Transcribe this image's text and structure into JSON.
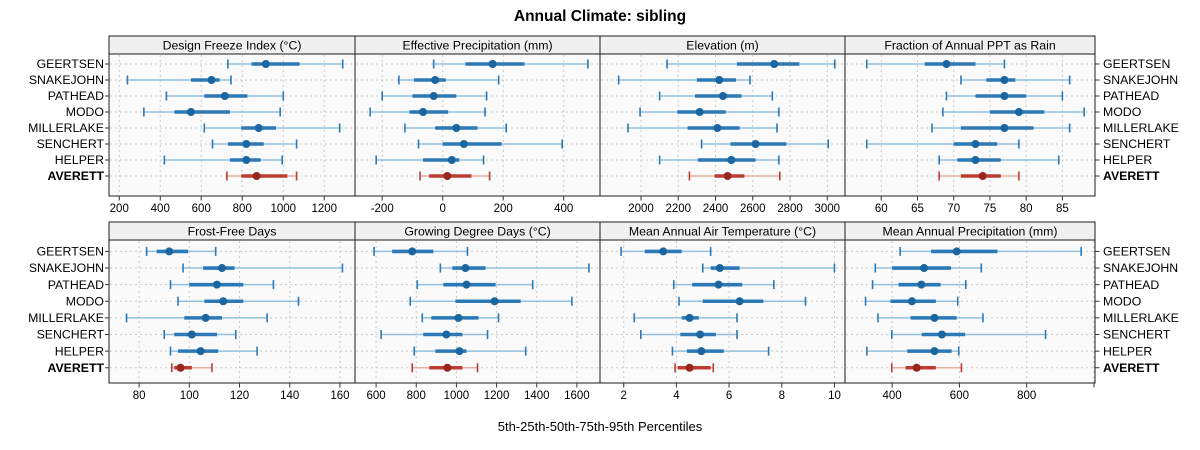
{
  "title": "Annual Climate: sibling",
  "xlabel": "5th-25th-50th-75th-95th Percentiles",
  "colors": {
    "blue_light": "#93c0de",
    "blue_mid": "#2b79b7",
    "blue_dot": "#1b669f",
    "red_light": "#eaaca4",
    "red_mid": "#bd3d31",
    "red_dot": "#9a251c",
    "header_bg": "#f0f0f0",
    "panel_bg": "#fafafa",
    "grid": "#c9c9c9",
    "border": "#1c1c1c",
    "tick": "#333333",
    "text": "#000000"
  },
  "chart_data": {
    "type": "dotplot-percentiles",
    "percentile_labels": [
      "5th",
      "25th",
      "50th",
      "75th",
      "95th"
    ],
    "stations": [
      "GEERTSEN",
      "SNAKEJOHN",
      "PATHEAD",
      "MODO",
      "MILLERLAKE",
      "SENCHERT",
      "HELPER",
      "AVERETT"
    ],
    "highlight_station": "AVERETT",
    "legend_position": "none",
    "grid": "dashed",
    "panels": [
      {
        "header": "Design Freeze Index (°C)",
        "row": 0,
        "col": 0,
        "xlim": [
          150,
          1350
        ],
        "ticks": [
          200,
          400,
          600,
          800,
          1000,
          1200
        ],
        "tick_labels": [
          "200",
          "400",
          "600",
          "800",
          "1000",
          "1200"
        ],
        "series": [
          [
            730,
            845,
            915,
            1080,
            1290
          ],
          [
            240,
            550,
            650,
            690,
            745
          ],
          [
            430,
            615,
            715,
            825,
            1000
          ],
          [
            320,
            470,
            550,
            740,
            985
          ],
          [
            615,
            795,
            880,
            965,
            1275
          ],
          [
            655,
            730,
            820,
            905,
            1065
          ],
          [
            420,
            740,
            820,
            890,
            995
          ],
          [
            725,
            795,
            870,
            1020,
            1065
          ]
        ]
      },
      {
        "header": "Effective Precipitation (mm)",
        "row": 0,
        "col": 1,
        "xlim": [
          -290,
          520
        ],
        "ticks": [
          -200,
          0,
          200,
          400
        ],
        "tick_labels": [
          "-200",
          "0",
          "200",
          "400"
        ],
        "series": [
          [
            -30,
            75,
            165,
            270,
            480
          ],
          [
            -145,
            -95,
            -25,
            10,
            185
          ],
          [
            -200,
            -100,
            -30,
            45,
            145
          ],
          [
            -240,
            -110,
            -65,
            18,
            140
          ],
          [
            -125,
            -25,
            45,
            115,
            210
          ],
          [
            -80,
            0,
            70,
            195,
            395
          ],
          [
            -220,
            -65,
            30,
            55,
            135
          ],
          [
            -75,
            -45,
            15,
            95,
            155
          ]
        ]
      },
      {
        "header": "Elevation (m)",
        "row": 0,
        "col": 2,
        "xlim": [
          1780,
          3095
        ],
        "ticks": [
          2000,
          2200,
          2400,
          2600,
          2800,
          3000
        ],
        "tick_labels": [
          "2000",
          "2200",
          "2400",
          "2600",
          "2800",
          "3000"
        ],
        "series": [
          [
            2140,
            2515,
            2715,
            2850,
            3040
          ],
          [
            1880,
            2300,
            2420,
            2510,
            2585
          ],
          [
            2100,
            2290,
            2440,
            2540,
            2705
          ],
          [
            1995,
            2195,
            2315,
            2455,
            2740
          ],
          [
            1930,
            2250,
            2410,
            2530,
            2730
          ],
          [
            2325,
            2480,
            2615,
            2780,
            3005
          ],
          [
            2100,
            2305,
            2485,
            2615,
            2740
          ],
          [
            2260,
            2395,
            2465,
            2555,
            2745
          ]
        ]
      },
      {
        "header": "Fraction of Annual PPT as Rain",
        "row": 0,
        "col": 3,
        "xlim": [
          55,
          89.5
        ],
        "ticks": [
          60,
          65,
          70,
          75,
          80,
          85
        ],
        "tick_labels": [
          "60",
          "65",
          "70",
          "75",
          "80",
          "85"
        ],
        "series": [
          [
            58,
            66,
            69,
            73,
            77
          ],
          [
            71,
            74.5,
            77,
            78.5,
            86
          ],
          [
            69,
            73,
            77,
            80,
            85
          ],
          [
            68.5,
            75,
            79,
            82.5,
            88
          ],
          [
            67,
            71,
            77,
            81,
            86
          ],
          [
            58,
            70,
            73,
            76,
            79
          ],
          [
            68,
            70.5,
            73,
            76.5,
            84.5
          ],
          [
            68,
            71,
            74,
            76.5,
            79
          ]
        ]
      },
      {
        "header": "Frost-Free Days",
        "row": 1,
        "col": 0,
        "xlim": [
          68,
          166
        ],
        "ticks": [
          80,
          100,
          120,
          140,
          160
        ],
        "tick_labels": [
          "80",
          "100",
          "120",
          "140",
          "160"
        ],
        "series": [
          [
            83,
            87,
            92,
            99.5,
            110.5
          ],
          [
            97.5,
            105.5,
            113,
            118,
            161
          ],
          [
            92.5,
            100,
            111,
            121.5,
            133.5
          ],
          [
            95.5,
            106,
            113.5,
            121.5,
            143.5
          ],
          [
            75,
            98,
            106.5,
            113,
            131
          ],
          [
            90,
            94,
            101,
            111,
            118.5
          ],
          [
            92.5,
            95.5,
            104.5,
            111.5,
            127
          ],
          [
            93,
            94,
            96.5,
            101,
            109
          ]
        ]
      },
      {
        "header": "Growing Degree Days (°C)",
        "row": 1,
        "col": 1,
        "xlim": [
          495,
          1715
        ],
        "ticks": [
          600,
          800,
          1000,
          1200,
          1400,
          1600
        ],
        "tick_labels": [
          "600",
          "800",
          "1000",
          "1200",
          "1400",
          "1600"
        ],
        "series": [
          [
            590,
            680,
            780,
            885,
            1055
          ],
          [
            920,
            980,
            1045,
            1145,
            1660
          ],
          [
            805,
            935,
            1050,
            1195,
            1380
          ],
          [
            770,
            995,
            1190,
            1320,
            1575
          ],
          [
            830,
            875,
            1010,
            1110,
            1210
          ],
          [
            625,
            835,
            950,
            1030,
            1155
          ],
          [
            790,
            895,
            1015,
            1050,
            1345
          ],
          [
            780,
            865,
            955,
            1030,
            1105
          ]
        ]
      },
      {
        "header": "Mean Annual Air Temperature (°C)",
        "row": 1,
        "col": 2,
        "xlim": [
          1.1,
          10.4
        ],
        "ticks": [
          2,
          4,
          6,
          8,
          10
        ],
        "tick_labels": [
          "2",
          "4",
          "6",
          "8",
          "10"
        ],
        "series": [
          [
            1.9,
            2.8,
            3.5,
            4.2,
            5.3
          ],
          [
            5.0,
            5.3,
            5.65,
            6.4,
            10.0
          ],
          [
            3.9,
            4.6,
            5.6,
            6.5,
            7.7
          ],
          [
            4.1,
            5.0,
            6.4,
            7.3,
            8.9
          ],
          [
            2.4,
            4.2,
            4.5,
            4.85,
            6.3
          ],
          [
            2.65,
            4.15,
            4.9,
            5.5,
            6.3
          ],
          [
            3.85,
            4.4,
            4.95,
            5.8,
            7.5
          ],
          [
            3.95,
            4.05,
            4.5,
            5.3,
            5.4
          ]
        ]
      },
      {
        "header": "Mean Annual Precipitation (mm)",
        "row": 1,
        "col": 3,
        "xlim": [
          260,
          1003
        ],
        "ticks": [
          400,
          600,
          800,
          1000
        ],
        "tick_labels": [
          "400",
          "600",
          "800",
          ""
        ],
        "series": [
          [
            424,
            516,
            592,
            713,
            962
          ],
          [
            350,
            400,
            495,
            575,
            665
          ],
          [
            342,
            419,
            487,
            544,
            619
          ],
          [
            321,
            395,
            459,
            530,
            595
          ],
          [
            358,
            455,
            526,
            592,
            670
          ],
          [
            399,
            488,
            548,
            617,
            856
          ],
          [
            325,
            445,
            526,
            577,
            598
          ],
          [
            399,
            440,
            473,
            530,
            606
          ]
        ]
      }
    ]
  }
}
